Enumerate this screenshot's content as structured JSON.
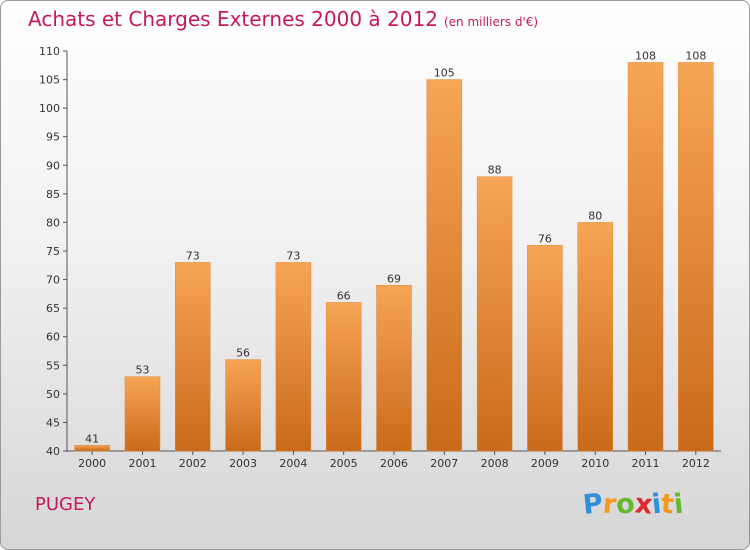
{
  "chart_data": {
    "type": "bar",
    "title": "Achats et Charges Externes 2000 à 2012",
    "subtitle": "(en milliers d'€)",
    "categories": [
      "2000",
      "2001",
      "2002",
      "2003",
      "2004",
      "2005",
      "2006",
      "2007",
      "2008",
      "2009",
      "2010",
      "2011",
      "2012"
    ],
    "values": [
      41,
      53,
      73,
      56,
      73,
      66,
      69,
      105,
      88,
      76,
      80,
      108,
      108
    ],
    "ylim": [
      40,
      110
    ],
    "yticks": [
      40,
      45,
      50,
      55,
      60,
      65,
      70,
      75,
      80,
      85,
      90,
      95,
      100,
      105,
      110
    ],
    "grid": false,
    "bar_color": "#f0923a"
  },
  "commune": "PUGEY",
  "logo": {
    "letters": [
      "P",
      "r",
      "o",
      "x",
      "i",
      "t",
      "i"
    ],
    "colors": [
      "#2f8fd8",
      "#f39a1e",
      "#66b832",
      "#e0272f",
      "#2f8fd8",
      "#f39a1e",
      "#66b832"
    ]
  },
  "colors": {
    "title": "#c8185c",
    "bar_light": "#f7a556",
    "bar_dark": "#c96a1a"
  }
}
